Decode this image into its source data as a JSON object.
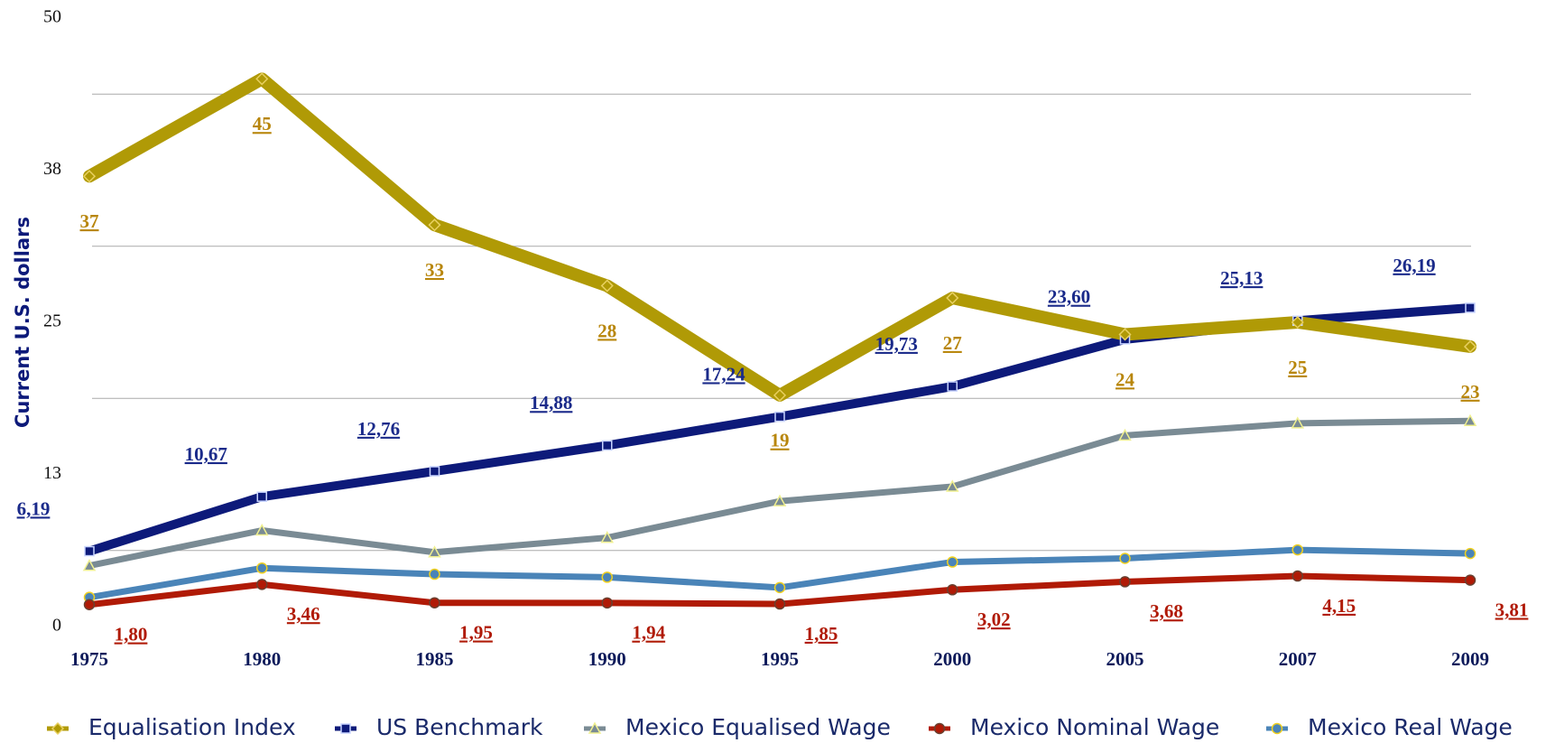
{
  "chart_data": {
    "type": "line",
    "ylabel": "Current U.S. dollars",
    "categories": [
      "1975",
      "1980",
      "1985",
      "1990",
      "1995",
      "2000",
      "2005",
      "2007",
      "2009"
    ],
    "ylim": [
      0,
      50
    ],
    "yticks": [
      0,
      {
        "value": 12.5,
        "label": "13"
      },
      25,
      {
        "value": 37.5,
        "label": "38"
      },
      50
    ],
    "grid_lines": [
      6.25,
      18.75,
      31.25,
      43.75
    ],
    "legend": "bottom",
    "series": [
      {
        "name": "Equalisation Index",
        "color": "#b09a06",
        "label_color": "#b8860b",
        "marker": "diamond",
        "values": [
          37,
          45,
          33,
          28,
          19,
          27,
          24,
          25,
          23
        ]
      },
      {
        "name": "US Benchmark",
        "color": "#0d1a7a",
        "label_color": "#1a2a8a",
        "marker": "square",
        "values": [
          6.19,
          10.67,
          12.76,
          14.88,
          17.24,
          19.73,
          23.6,
          25.13,
          26.19
        ],
        "value_labels": [
          "6,19",
          "10,67",
          "12,76",
          "14,88",
          "17,24",
          "19,73",
          "23,60",
          "25,13",
          "26,19"
        ]
      },
      {
        "name": "Mexico Equalised Wage",
        "color": "#7a8b94",
        "marker": "triangle",
        "values": [
          5.0,
          7.9,
          6.1,
          7.3,
          10.3,
          11.5,
          15.7,
          16.7,
          16.9
        ]
      },
      {
        "name": "Mexico Nominal Wage",
        "color": "#b01a06",
        "label_color": "#b01a06",
        "marker": "circle",
        "values": [
          1.8,
          3.46,
          1.95,
          1.94,
          1.85,
          3.02,
          3.68,
          4.15,
          3.81
        ],
        "value_labels": [
          "1,80",
          "3,46",
          "1,95",
          "1,94",
          "1,85",
          "3,02",
          "3,68",
          "4,15",
          "3,81"
        ]
      },
      {
        "name": "Mexico Real Wage",
        "color": "#4a84b8",
        "marker": "circle",
        "values": [
          2.4,
          4.8,
          4.3,
          4.05,
          3.2,
          5.3,
          5.6,
          6.3,
          6.0
        ]
      }
    ]
  }
}
